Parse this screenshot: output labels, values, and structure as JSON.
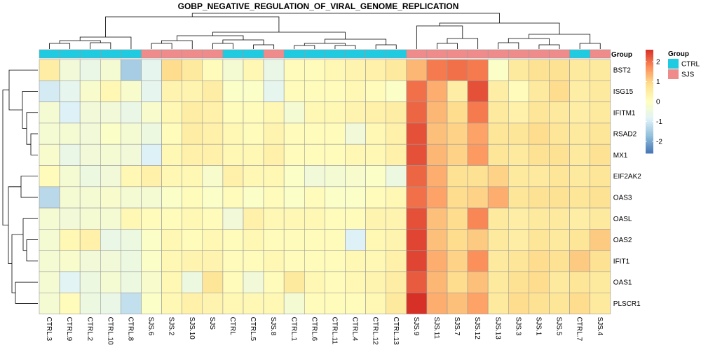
{
  "chart_data": {
    "type": "heatmap",
    "title": "GOBP_NEGATIVE_REGULATION_OF_VIRAL_GENOME_REPLICATION",
    "columns": [
      "CTRL.3",
      "CTRL.9",
      "CTRL.2",
      "CTRL.10",
      "CTRL.8",
      "SJS.6",
      "SJS.2",
      "SJS.10",
      "SJS",
      "CTRL",
      "CTRL.5",
      "SJS.8",
      "CTRL.1",
      "CTRL.6",
      "CTRL.11",
      "CTRL.4",
      "CTRL.12",
      "CTRL.13",
      "SJS.9",
      "SJS.11",
      "SJS.7",
      "SJS.12",
      "SJS.13",
      "SJS.3",
      "SJS.1",
      "SJS.5",
      "CTRL.7",
      "SJS.4"
    ],
    "rows": [
      "BST2",
      "ISG15",
      "IFITM1",
      "RSAD2",
      "MX1",
      "EIF2AK2",
      "OAS3",
      "OASL",
      "OAS2",
      "IFIT1",
      "OAS1",
      "PLSCR1"
    ],
    "values": [
      [
        0.5,
        -0.4,
        -0.6,
        -0.3,
        -1.5,
        -0.7,
        0.9,
        0.6,
        0.1,
        -0.3,
        0.2,
        -0.6,
        0.1,
        0.1,
        0.2,
        0.3,
        0.4,
        0.6,
        1.3,
        1.9,
        2.0,
        1.9,
        -0.1,
        0.6,
        0.8,
        0.8,
        0.6,
        0.6
      ],
      [
        -1.0,
        -0.7,
        -0.2,
        0.2,
        -0.2,
        -0.7,
        0.3,
        0.3,
        0.5,
        -0.1,
        -0.1,
        -0.7,
        0.1,
        0.1,
        0.1,
        0.2,
        0.1,
        -0.1,
        2.0,
        1.4,
        0.5,
        2.3,
        0.5,
        0.1,
        0.6,
        0.9,
        0.5,
        0.6
      ],
      [
        -0.3,
        -0.9,
        -0.4,
        -0.4,
        -0.6,
        -0.2,
        0.2,
        0.5,
        0.4,
        0.1,
        0.1,
        0.2,
        -0.3,
        0.2,
        0.2,
        0.3,
        0.4,
        0.5,
        2.1,
        1.3,
        0.9,
        1.9,
        0.6,
        0.4,
        0.7,
        0.6,
        0.5,
        0.6
      ],
      [
        -0.3,
        -0.3,
        -0.4,
        -0.1,
        -0.3,
        -0.5,
        0.1,
        0.5,
        0.4,
        0.2,
        0.1,
        0.3,
        0.1,
        0.1,
        0.1,
        -0.4,
        0.2,
        0.4,
        2.3,
        1.2,
        1.0,
        1.5,
        0.7,
        0.7,
        0.9,
        0.7,
        0.6,
        0.7
      ],
      [
        -0.2,
        -0.6,
        -0.4,
        -0.3,
        -0.4,
        -0.9,
        0.2,
        0.4,
        0.4,
        0.2,
        0.2,
        0.4,
        0.1,
        0.1,
        0.1,
        0.2,
        0.2,
        0.4,
        2.3,
        1.3,
        1.0,
        1.6,
        0.7,
        0.6,
        0.8,
        0.8,
        0.6,
        0.8
      ],
      [
        0.1,
        -0.3,
        -0.5,
        -0.4,
        0.2,
        0.4,
        0.2,
        0.2,
        -0.2,
        0.4,
        0.2,
        0.2,
        -0.1,
        -0.4,
        -0.3,
        -0.2,
        -0.1,
        -0.5,
        2.1,
        1.4,
        0.8,
        0.8,
        1.0,
        0.6,
        0.6,
        0.7,
        0.6,
        0.7
      ],
      [
        -1.3,
        -0.3,
        -0.3,
        -0.2,
        -0.3,
        -0.3,
        -0.1,
        0.1,
        -0.1,
        0.1,
        -0.1,
        0.1,
        -0.1,
        0.1,
        -0.1,
        -0.1,
        0.1,
        0.2,
        2.0,
        1.5,
        0.9,
        1.0,
        1.4,
        0.7,
        0.8,
        0.8,
        0.7,
        0.8
      ],
      [
        -0.3,
        -0.4,
        -0.3,
        -0.3,
        0.2,
        0.1,
        0.1,
        0.2,
        0.1,
        -0.4,
        0.4,
        0.2,
        0.2,
        0.2,
        0.1,
        0.1,
        0.3,
        0.3,
        2.3,
        1.2,
        0.9,
        1.8,
        0.6,
        0.5,
        0.6,
        0.6,
        0.5,
        0.6
      ],
      [
        -0.3,
        0.2,
        0.4,
        -0.6,
        -0.5,
        -0.1,
        0.2,
        0.1,
        0.2,
        0.1,
        0.2,
        0.1,
        0.1,
        0.1,
        0.1,
        -0.9,
        0.2,
        0.3,
        2.4,
        1.2,
        0.9,
        1.1,
        0.6,
        0.5,
        0.7,
        0.6,
        0.7,
        1.1
      ],
      [
        -0.3,
        -0.2,
        -0.4,
        -0.4,
        -0.5,
        -0.1,
        0.2,
        0.3,
        0.3,
        0.1,
        0.1,
        0.2,
        0.1,
        0.1,
        0.1,
        0.2,
        0.2,
        0.4,
        2.4,
        1.4,
        1.0,
        1.7,
        0.6,
        0.7,
        0.9,
        0.8,
        1.1,
        0.8
      ],
      [
        -0.3,
        -0.8,
        -0.5,
        -0.3,
        -0.5,
        -0.2,
        0.2,
        -0.5,
        0.7,
        0.1,
        -0.4,
        0.1,
        0.6,
        0.2,
        0.1,
        0.2,
        0.3,
        0.5,
        2.2,
        1.3,
        0.9,
        1.2,
        0.6,
        0.8,
        0.9,
        0.6,
        0.7,
        0.6
      ],
      [
        -0.3,
        0.1,
        -0.5,
        -0.6,
        -1.2,
        -0.1,
        0.2,
        0.4,
        0.3,
        0.2,
        0.2,
        0.2,
        -0.3,
        0.1,
        0.1,
        0.1,
        0.2,
        0.6,
        2.6,
        1.4,
        1.2,
        1.5,
        0.6,
        0.9,
        0.8,
        0.7,
        0.9,
        0.6
      ]
    ],
    "groups": [
      "CTRL",
      "CTRL",
      "CTRL",
      "CTRL",
      "CTRL",
      "SJS",
      "SJS",
      "SJS",
      "SJS",
      "CTRL",
      "CTRL",
      "SJS",
      "CTRL",
      "CTRL",
      "CTRL",
      "CTRL",
      "CTRL",
      "CTRL",
      "SJS",
      "SJS",
      "SJS",
      "SJS",
      "SJS",
      "SJS",
      "SJS",
      "SJS",
      "CTRL",
      "SJS"
    ],
    "annotation_label": "Group",
    "legend": {
      "title": "Group",
      "entries": [
        {
          "name": "CTRL",
          "color": "#1ECBE1"
        },
        {
          "name": "SJS",
          "color": "#F08B8B"
        }
      ]
    },
    "colorbar": {
      "range": [
        -2.6,
        2.6
      ],
      "ticks": [
        2,
        1,
        0,
        -1,
        -2
      ],
      "colors": [
        "#4575B4",
        "#91BFDB",
        "#E0F3F8",
        "#FFFFBF",
        "#FEE090",
        "#FC8D59",
        "#D73027"
      ]
    },
    "dendrogram_rows": true,
    "dendrogram_columns": true
  }
}
